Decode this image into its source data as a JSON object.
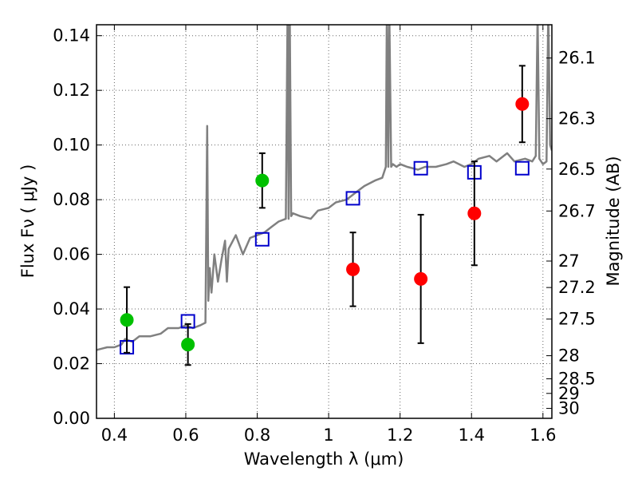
{
  "chart_data": {
    "type": "scatter",
    "xlabel": "Wavelength  λ (μm)",
    "ylabel": "Flux  Fν  ( μJy )",
    "y2label": "Magnitude (AB)",
    "xlim": [
      0.35,
      1.625
    ],
    "ylim": [
      0.0,
      0.144
    ],
    "grid": true,
    "x_ticks": [
      0.4,
      0.6,
      0.8,
      1.0,
      1.2,
      1.4,
      1.6
    ],
    "x_tick_labels": [
      "0.4",
      "0.6",
      "0.8",
      "1",
      "1.2",
      "1.4",
      "1.6"
    ],
    "y_ticks": [
      0.0,
      0.02,
      0.04,
      0.06,
      0.08,
      0.1,
      0.12,
      0.14
    ],
    "y_tick_labels": [
      "0.00",
      "0.02",
      "0.04",
      "0.06",
      "0.08",
      "0.10",
      "0.12",
      "0.14"
    ],
    "y2_ticks": [
      "26.1",
      "26.3",
      "26.5",
      "26.7",
      "27",
      "27.2",
      "27.5",
      "28",
      "28.5",
      "29",
      "30"
    ],
    "series": [
      {
        "kind": "line",
        "color": "#808080",
        "x": [
          0.35,
          0.38,
          0.4,
          0.42,
          0.43,
          0.45,
          0.47,
          0.5,
          0.53,
          0.55,
          0.58,
          0.6,
          0.62,
          0.64,
          0.655,
          0.66,
          0.663,
          0.667,
          0.672,
          0.68,
          0.69,
          0.7,
          0.71,
          0.715,
          0.72,
          0.74,
          0.76,
          0.78,
          0.8,
          0.82,
          0.84,
          0.86,
          0.88,
          0.885,
          0.888,
          0.891,
          0.895,
          0.9,
          0.92,
          0.95,
          0.97,
          1.0,
          1.02,
          1.05,
          1.08,
          1.1,
          1.13,
          1.15,
          1.16,
          1.163,
          1.167,
          1.17,
          1.175,
          1.18,
          1.19,
          1.2,
          1.22,
          1.25,
          1.27,
          1.3,
          1.33,
          1.35,
          1.38,
          1.4,
          1.42,
          1.45,
          1.47,
          1.5,
          1.52,
          1.55,
          1.57,
          1.58,
          1.585,
          1.59,
          1.6,
          1.61,
          1.615,
          1.62,
          1.625
        ],
        "y": [
          0.025,
          0.026,
          0.026,
          0.027,
          0.029,
          0.028,
          0.03,
          0.03,
          0.031,
          0.033,
          0.033,
          0.034,
          0.033,
          0.034,
          0.035,
          0.107,
          0.043,
          0.055,
          0.046,
          0.06,
          0.05,
          0.058,
          0.065,
          0.05,
          0.062,
          0.067,
          0.06,
          0.066,
          0.067,
          0.068,
          0.07,
          0.072,
          0.073,
          0.15,
          0.073,
          0.15,
          0.074,
          0.075,
          0.074,
          0.073,
          0.076,
          0.077,
          0.079,
          0.08,
          0.083,
          0.085,
          0.087,
          0.088,
          0.092,
          0.15,
          0.092,
          0.148,
          0.092,
          0.093,
          0.092,
          0.093,
          0.092,
          0.091,
          0.092,
          0.092,
          0.093,
          0.094,
          0.092,
          0.093,
          0.095,
          0.096,
          0.094,
          0.097,
          0.094,
          0.095,
          0.094,
          0.096,
          0.148,
          0.095,
          0.093,
          0.094,
          0.15,
          0.1,
          0.098
        ]
      },
      {
        "kind": "points",
        "marker": "square-open",
        "color": "#0000cc",
        "x": [
          0.435,
          0.606,
          0.814,
          1.068,
          1.258,
          1.408,
          1.542
        ],
        "y": [
          0.026,
          0.0355,
          0.0655,
          0.0805,
          0.0915,
          0.09,
          0.0915
        ]
      },
      {
        "kind": "points",
        "marker": "circle",
        "color": "#00c000",
        "x": [
          0.435,
          0.606,
          0.814
        ],
        "y": [
          0.036,
          0.027,
          0.087
        ],
        "err": [
          0.012,
          0.0075,
          0.01
        ]
      },
      {
        "kind": "points",
        "marker": "circle",
        "color": "#ff0000",
        "x": [
          1.068,
          1.258,
          1.408,
          1.542
        ],
        "y": [
          0.0545,
          0.051,
          0.075,
          0.115
        ],
        "err": [
          0.0135,
          0.0235,
          0.019,
          0.014
        ]
      }
    ]
  }
}
